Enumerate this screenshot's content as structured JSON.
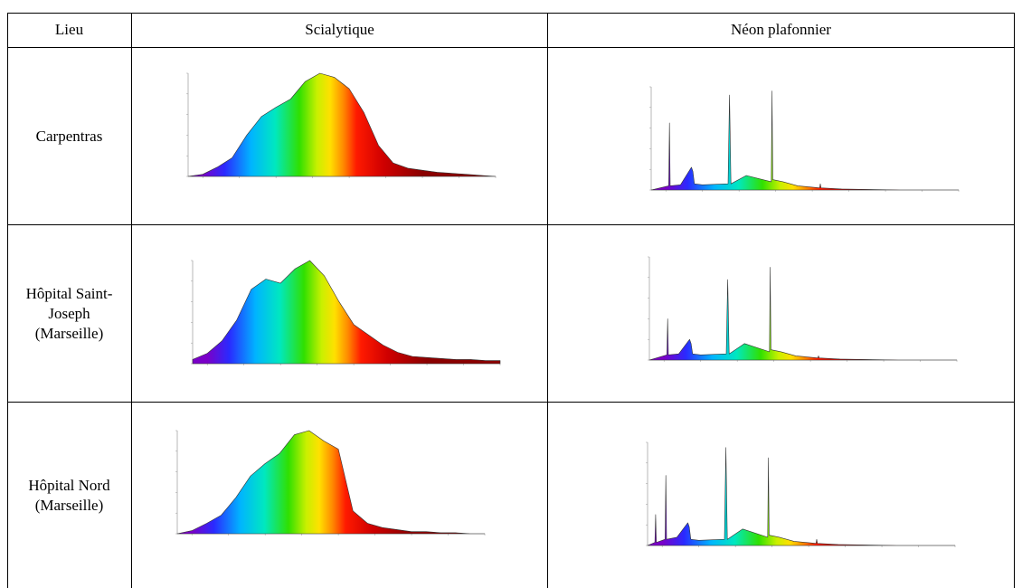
{
  "table": {
    "headers": [
      "Lieu",
      "Scialytique",
      "Néon plafonnier"
    ],
    "rows": [
      {
        "lieu": "Carpentras"
      },
      {
        "lieu": "Hôpital Saint-\nJoseph\n(Marseille)"
      },
      {
        "lieu": "Hôpital Nord\n(Marseille)"
      }
    ]
  },
  "chart_data": [
    {
      "type": "area",
      "name": "scialytique-carpentras",
      "x": [
        380,
        400,
        420,
        440,
        460,
        480,
        500,
        520,
        540,
        560,
        580,
        600,
        620,
        640,
        660,
        680,
        700,
        720,
        740,
        760,
        780,
        800
      ],
      "values": [
        0,
        2,
        9,
        18,
        40,
        58,
        67,
        75,
        92,
        100,
        96,
        85,
        62,
        30,
        13,
        8,
        6,
        4,
        3,
        2,
        1,
        0
      ]
    },
    {
      "type": "area",
      "name": "neon-carpentras",
      "x": [
        380,
        404,
        405,
        406,
        420,
        435,
        437,
        439,
        450,
        485,
        487,
        489,
        510,
        544,
        545,
        546,
        560,
        580,
        610,
        611,
        612,
        640,
        720,
        800
      ],
      "values": [
        0,
        4,
        65,
        4,
        5,
        22,
        18,
        6,
        5,
        6,
        92,
        6,
        14,
        8,
        96,
        10,
        8,
        4,
        2,
        6,
        2,
        1,
        0,
        0
      ]
    },
    {
      "type": "area",
      "name": "scialytique-saint-joseph",
      "x": [
        380,
        400,
        420,
        440,
        460,
        480,
        500,
        520,
        540,
        560,
        580,
        600,
        620,
        640,
        660,
        680,
        700,
        720,
        740,
        760,
        780,
        800
      ],
      "values": [
        4,
        10,
        22,
        42,
        72,
        82,
        78,
        92,
        100,
        85,
        60,
        38,
        28,
        18,
        11,
        7,
        6,
        5,
        4,
        4,
        3,
        3
      ]
    },
    {
      "type": "area",
      "name": "neon-saint-joseph",
      "x": [
        380,
        404,
        405,
        406,
        420,
        435,
        437,
        439,
        450,
        485,
        487,
        489,
        510,
        544,
        545,
        546,
        560,
        580,
        610,
        611,
        612,
        640,
        720,
        800
      ],
      "values": [
        0,
        5,
        40,
        5,
        6,
        20,
        16,
        6,
        5,
        6,
        78,
        6,
        16,
        8,
        90,
        10,
        8,
        4,
        2,
        4,
        2,
        1,
        0,
        0
      ]
    },
    {
      "type": "area",
      "name": "scialytique-nord",
      "x": [
        380,
        400,
        420,
        440,
        460,
        480,
        500,
        520,
        540,
        560,
        580,
        600,
        620,
        640,
        660,
        680,
        700,
        720,
        740,
        760,
        780,
        800
      ],
      "values": [
        0,
        3,
        10,
        18,
        35,
        56,
        68,
        78,
        96,
        100,
        90,
        82,
        22,
        10,
        6,
        4,
        2,
        2,
        1,
        1,
        0,
        0
      ]
    },
    {
      "type": "area",
      "name": "neon-nord",
      "x": [
        380,
        390,
        391,
        392,
        404,
        405,
        406,
        420,
        435,
        437,
        439,
        450,
        485,
        487,
        489,
        510,
        544,
        545,
        546,
        560,
        580,
        610,
        611,
        612,
        640,
        720,
        800
      ],
      "values": [
        0,
        3,
        30,
        3,
        6,
        68,
        6,
        8,
        22,
        18,
        6,
        5,
        6,
        95,
        6,
        16,
        8,
        85,
        10,
        8,
        4,
        2,
        6,
        2,
        1,
        0,
        0
      ]
    }
  ]
}
